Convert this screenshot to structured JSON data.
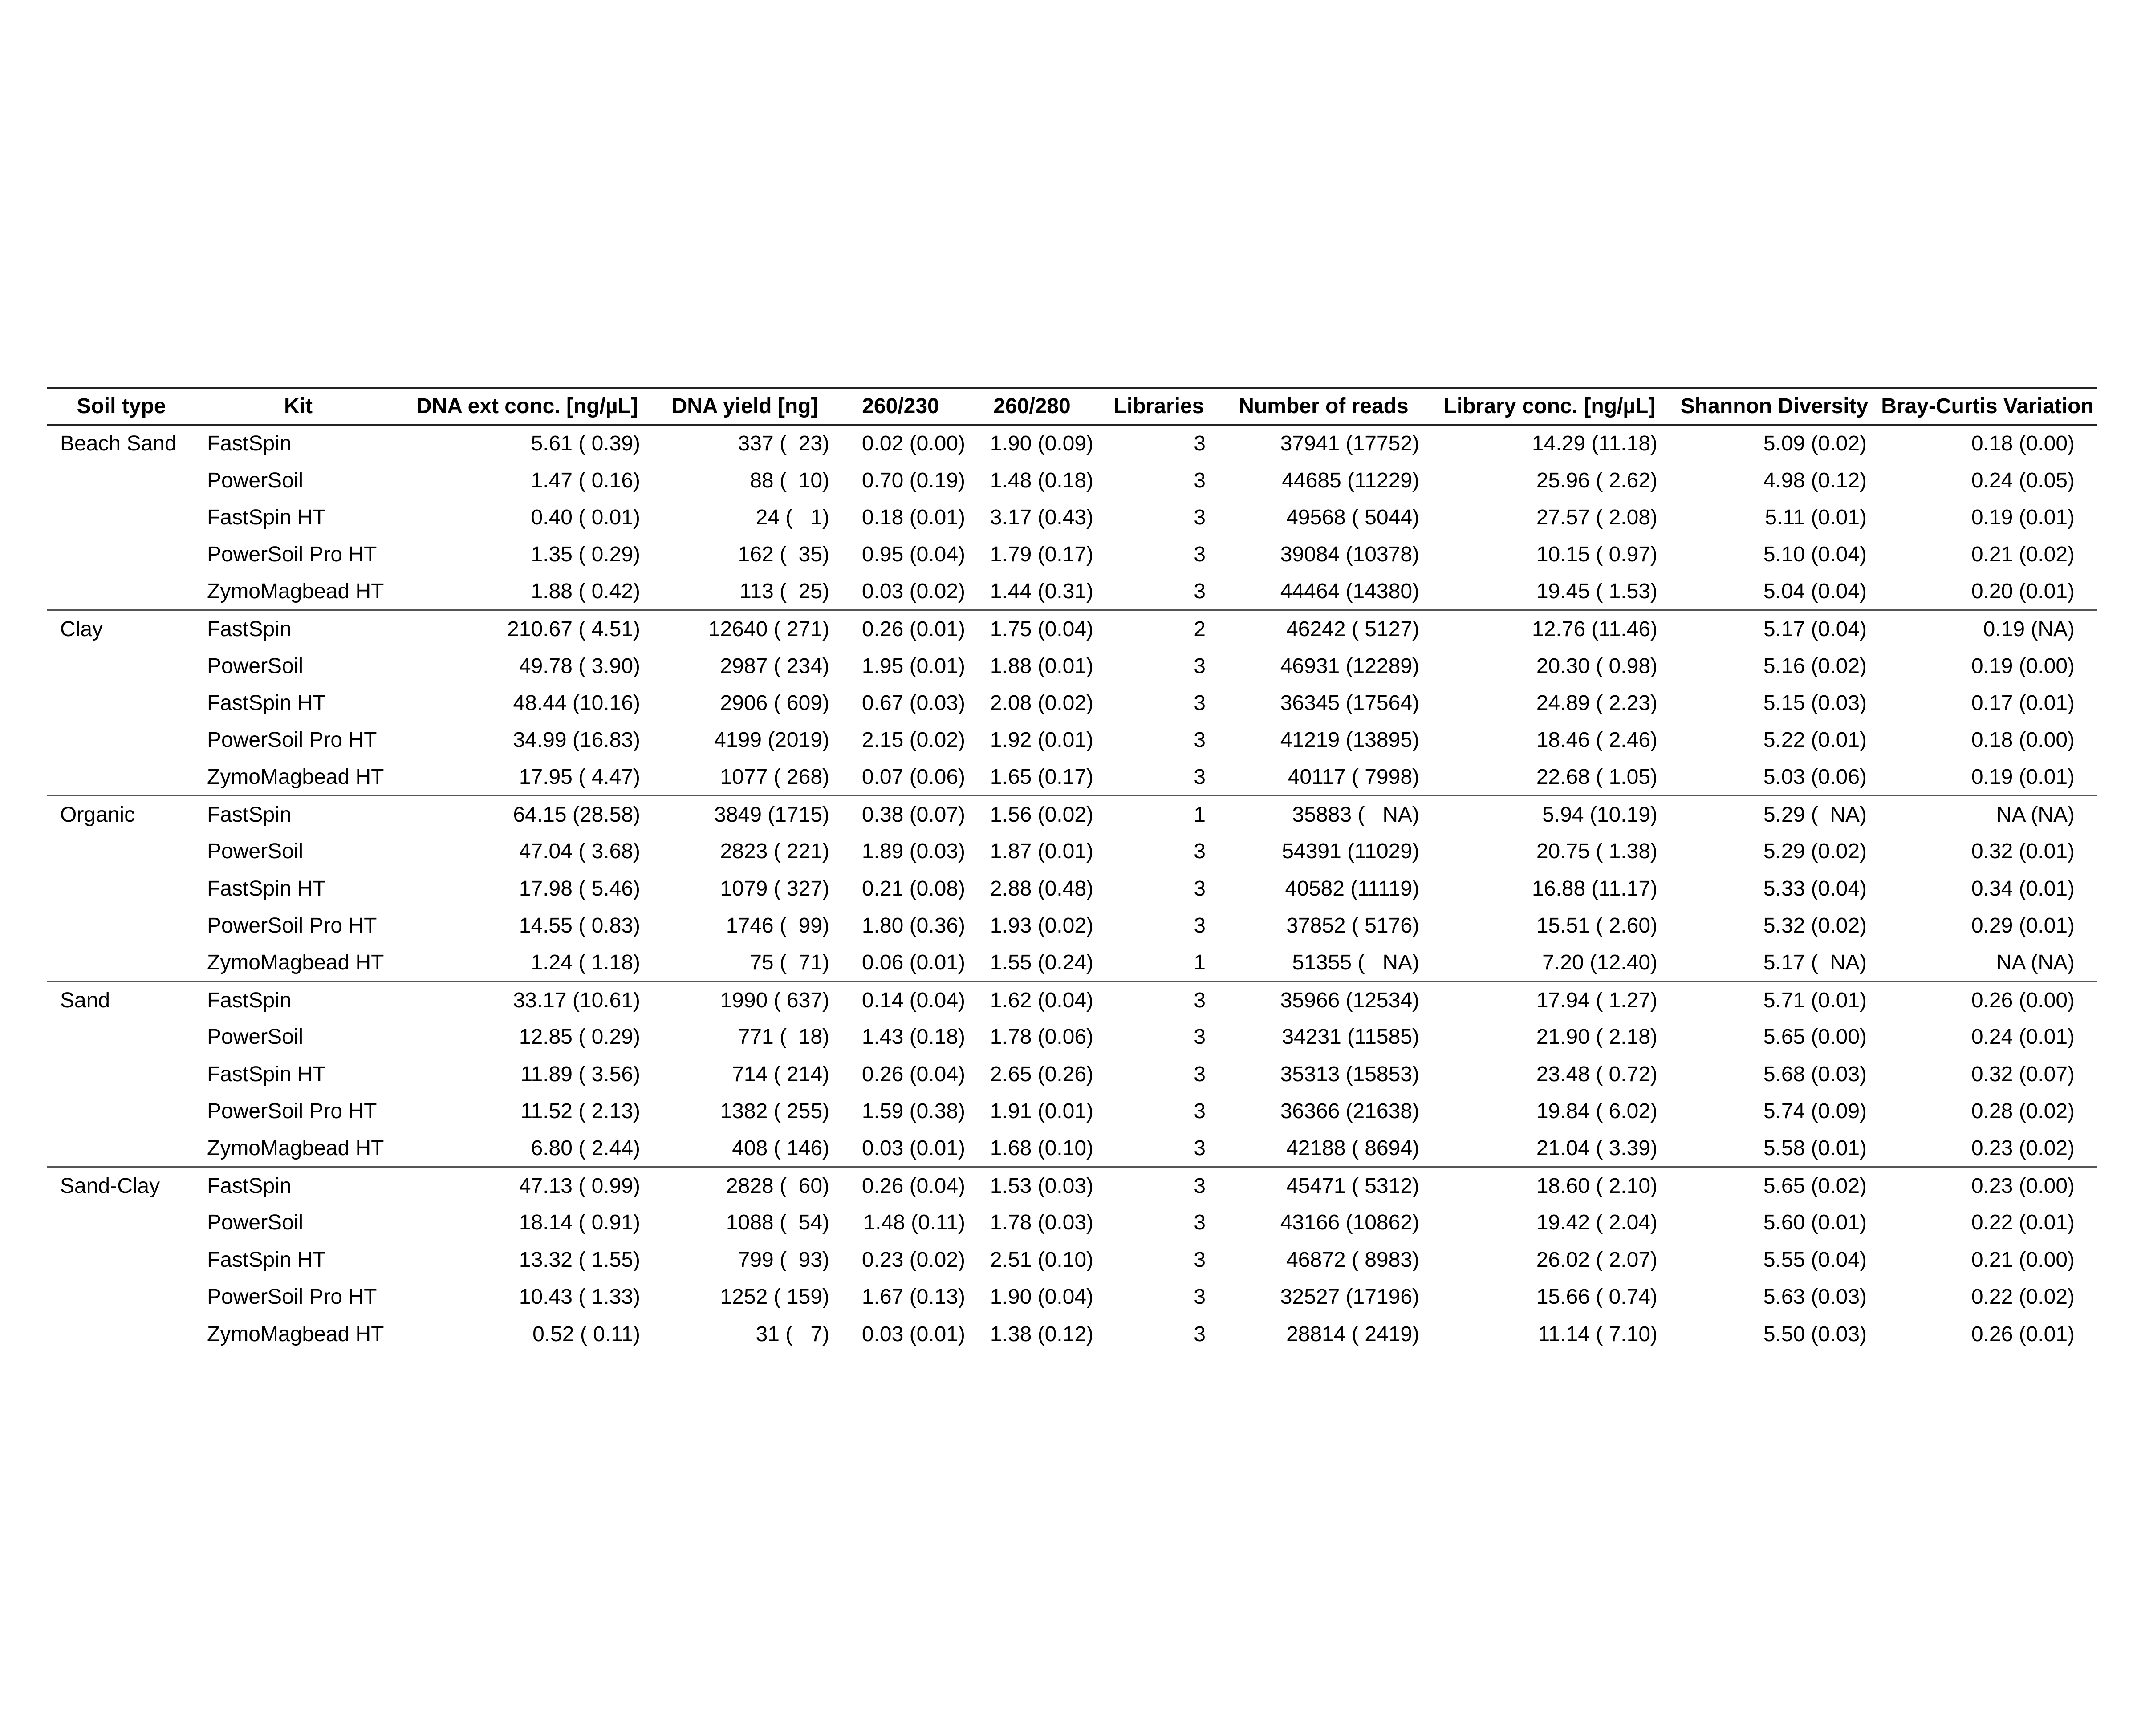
{
  "table": {
    "headers": [
      "Soil type",
      "Kit",
      "DNA ext conc. [ng/µL]",
      "DNA yield [ng]",
      "260/230",
      "260/280",
      "Libraries",
      "Number of reads",
      "Library conc. [ng/µL]",
      "Shannon Diversity",
      "Bray-Curtis Variation"
    ],
    "groups": [
      {
        "soil": "Beach Sand",
        "rows": [
          {
            "kit": "FastSpin",
            "dna_conc": "5.61 ( 0.39)",
            "yield": "337 (  23)",
            "r230": "0.02 (0.00)",
            "r280": "1.90 (0.09)",
            "libraries": "3",
            "reads": "37941 (17752)",
            "lib_conc": "14.29 (11.18)",
            "shannon": "5.09 (0.02)",
            "bray": "0.18 (0.00)"
          },
          {
            "kit": "PowerSoil",
            "dna_conc": "1.47 ( 0.16)",
            "yield": "88 (  10)",
            "r230": "0.70 (0.19)",
            "r280": "1.48 (0.18)",
            "libraries": "3",
            "reads": "44685 (11229)",
            "lib_conc": "25.96 ( 2.62)",
            "shannon": "4.98 (0.12)",
            "bray": "0.24 (0.05)"
          },
          {
            "kit": "FastSpin HT",
            "dna_conc": "0.40 ( 0.01)",
            "yield": "24 (   1)",
            "r230": "0.18 (0.01)",
            "r280": "3.17 (0.43)",
            "libraries": "3",
            "reads": "49568 ( 5044)",
            "lib_conc": "27.57 ( 2.08)",
            "shannon": "5.11 (0.01)",
            "bray": "0.19 (0.01)"
          },
          {
            "kit": "PowerSoil Pro HT",
            "dna_conc": "1.35 ( 0.29)",
            "yield": "162 (  35)",
            "r230": "0.95 (0.04)",
            "r280": "1.79 (0.17)",
            "libraries": "3",
            "reads": "39084 (10378)",
            "lib_conc": "10.15 ( 0.97)",
            "shannon": "5.10 (0.04)",
            "bray": "0.21 (0.02)"
          },
          {
            "kit": "ZymoMagbead HT",
            "dna_conc": "1.88 ( 0.42)",
            "yield": "113 (  25)",
            "r230": "0.03 (0.02)",
            "r280": "1.44 (0.31)",
            "libraries": "3",
            "reads": "44464 (14380)",
            "lib_conc": "19.45 ( 1.53)",
            "shannon": "5.04 (0.04)",
            "bray": "0.20 (0.01)"
          }
        ]
      },
      {
        "soil": "Clay",
        "rows": [
          {
            "kit": "FastSpin",
            "dna_conc": "210.67 ( 4.51)",
            "yield": "12640 ( 271)",
            "r230": "0.26 (0.01)",
            "r280": "1.75 (0.04)",
            "libraries": "2",
            "reads": "46242 ( 5127)",
            "lib_conc": "12.76 (11.46)",
            "shannon": "5.17 (0.04)",
            "bray": "0.19 (NA)"
          },
          {
            "kit": "PowerSoil",
            "dna_conc": "49.78 ( 3.90)",
            "yield": "2987 ( 234)",
            "r230": "1.95 (0.01)",
            "r280": "1.88 (0.01)",
            "libraries": "3",
            "reads": "46931 (12289)",
            "lib_conc": "20.30 ( 0.98)",
            "shannon": "5.16 (0.02)",
            "bray": "0.19 (0.00)"
          },
          {
            "kit": "FastSpin HT",
            "dna_conc": "48.44 (10.16)",
            "yield": "2906 ( 609)",
            "r230": "0.67 (0.03)",
            "r280": "2.08 (0.02)",
            "libraries": "3",
            "reads": "36345 (17564)",
            "lib_conc": "24.89 ( 2.23)",
            "shannon": "5.15 (0.03)",
            "bray": "0.17 (0.01)"
          },
          {
            "kit": "PowerSoil Pro HT",
            "dna_conc": "34.99 (16.83)",
            "yield": "4199 (2019)",
            "r230": "2.15 (0.02)",
            "r280": "1.92 (0.01)",
            "libraries": "3",
            "reads": "41219 (13895)",
            "lib_conc": "18.46 ( 2.46)",
            "shannon": "5.22 (0.01)",
            "bray": "0.18 (0.00)"
          },
          {
            "kit": "ZymoMagbead HT",
            "dna_conc": "17.95 ( 4.47)",
            "yield": "1077 ( 268)",
            "r230": "0.07 (0.06)",
            "r280": "1.65 (0.17)",
            "libraries": "3",
            "reads": "40117 ( 7998)",
            "lib_conc": "22.68 ( 1.05)",
            "shannon": "5.03 (0.06)",
            "bray": "0.19 (0.01)"
          }
        ]
      },
      {
        "soil": "Organic",
        "rows": [
          {
            "kit": "FastSpin",
            "dna_conc": "64.15 (28.58)",
            "yield": "3849 (1715)",
            "r230": "0.38 (0.07)",
            "r280": "1.56 (0.02)",
            "libraries": "1",
            "reads": "35883 (   NA)",
            "lib_conc": "5.94 (10.19)",
            "shannon": "5.29 (  NA)",
            "bray": "NA (NA)"
          },
          {
            "kit": "PowerSoil",
            "dna_conc": "47.04 ( 3.68)",
            "yield": "2823 ( 221)",
            "r230": "1.89 (0.03)",
            "r280": "1.87 (0.01)",
            "libraries": "3",
            "reads": "54391 (11029)",
            "lib_conc": "20.75 ( 1.38)",
            "shannon": "5.29 (0.02)",
            "bray": "0.32 (0.01)"
          },
          {
            "kit": "FastSpin HT",
            "dna_conc": "17.98 ( 5.46)",
            "yield": "1079 ( 327)",
            "r230": "0.21 (0.08)",
            "r280": "2.88 (0.48)",
            "libraries": "3",
            "reads": "40582 (11119)",
            "lib_conc": "16.88 (11.17)",
            "shannon": "5.33 (0.04)",
            "bray": "0.34 (0.01)"
          },
          {
            "kit": "PowerSoil Pro HT",
            "dna_conc": "14.55 ( 0.83)",
            "yield": "1746 (  99)",
            "r230": "1.80 (0.36)",
            "r280": "1.93 (0.02)",
            "libraries": "3",
            "reads": "37852 ( 5176)",
            "lib_conc": "15.51 ( 2.60)",
            "shannon": "5.32 (0.02)",
            "bray": "0.29 (0.01)"
          },
          {
            "kit": "ZymoMagbead HT",
            "dna_conc": "1.24 ( 1.18)",
            "yield": "75 (  71)",
            "r230": "0.06 (0.01)",
            "r280": "1.55 (0.24)",
            "libraries": "1",
            "reads": "51355 (   NA)",
            "lib_conc": "7.20 (12.40)",
            "shannon": "5.17 (  NA)",
            "bray": "NA (NA)"
          }
        ]
      },
      {
        "soil": "Sand",
        "rows": [
          {
            "kit": "FastSpin",
            "dna_conc": "33.17 (10.61)",
            "yield": "1990 ( 637)",
            "r230": "0.14 (0.04)",
            "r280": "1.62 (0.04)",
            "libraries": "3",
            "reads": "35966 (12534)",
            "lib_conc": "17.94 ( 1.27)",
            "shannon": "5.71 (0.01)",
            "bray": "0.26 (0.00)"
          },
          {
            "kit": "PowerSoil",
            "dna_conc": "12.85 ( 0.29)",
            "yield": "771 (  18)",
            "r230": "1.43 (0.18)",
            "r280": "1.78 (0.06)",
            "libraries": "3",
            "reads": "34231 (11585)",
            "lib_conc": "21.90 ( 2.18)",
            "shannon": "5.65 (0.00)",
            "bray": "0.24 (0.01)"
          },
          {
            "kit": "FastSpin HT",
            "dna_conc": "11.89 ( 3.56)",
            "yield": "714 ( 214)",
            "r230": "0.26 (0.04)",
            "r280": "2.65 (0.26)",
            "libraries": "3",
            "reads": "35313 (15853)",
            "lib_conc": "23.48 ( 0.72)",
            "shannon": "5.68 (0.03)",
            "bray": "0.32 (0.07)"
          },
          {
            "kit": "PowerSoil Pro HT",
            "dna_conc": "11.52 ( 2.13)",
            "yield": "1382 ( 255)",
            "r230": "1.59 (0.38)",
            "r280": "1.91 (0.01)",
            "libraries": "3",
            "reads": "36366 (21638)",
            "lib_conc": "19.84 ( 6.02)",
            "shannon": "5.74 (0.09)",
            "bray": "0.28 (0.02)"
          },
          {
            "kit": "ZymoMagbead HT",
            "dna_conc": "6.80 ( 2.44)",
            "yield": "408 ( 146)",
            "r230": "0.03 (0.01)",
            "r280": "1.68 (0.10)",
            "libraries": "3",
            "reads": "42188 ( 8694)",
            "lib_conc": "21.04 ( 3.39)",
            "shannon": "5.58 (0.01)",
            "bray": "0.23 (0.02)"
          }
        ]
      },
      {
        "soil": "Sand-Clay",
        "rows": [
          {
            "kit": "FastSpin",
            "dna_conc": "47.13 ( 0.99)",
            "yield": "2828 (  60)",
            "r230": "0.26 (0.04)",
            "r280": "1.53 (0.03)",
            "libraries": "3",
            "reads": "45471 ( 5312)",
            "lib_conc": "18.60 ( 2.10)",
            "shannon": "5.65 (0.02)",
            "bray": "0.23 (0.00)"
          },
          {
            "kit": "PowerSoil",
            "dna_conc": "18.14 ( 0.91)",
            "yield": "1088 (  54)",
            "r230": "1.48 (0.11)",
            "r280": "1.78 (0.03)",
            "libraries": "3",
            "reads": "43166 (10862)",
            "lib_conc": "19.42 ( 2.04)",
            "shannon": "5.60 (0.01)",
            "bray": "0.22 (0.01)"
          },
          {
            "kit": "FastSpin HT",
            "dna_conc": "13.32 ( 1.55)",
            "yield": "799 (  93)",
            "r230": "0.23 (0.02)",
            "r280": "2.51 (0.10)",
            "libraries": "3",
            "reads": "46872 ( 8983)",
            "lib_conc": "26.02 ( 2.07)",
            "shannon": "5.55 (0.04)",
            "bray": "0.21 (0.00)"
          },
          {
            "kit": "PowerSoil Pro HT",
            "dna_conc": "10.43 ( 1.33)",
            "yield": "1252 ( 159)",
            "r230": "1.67 (0.13)",
            "r280": "1.90 (0.04)",
            "libraries": "3",
            "reads": "32527 (17196)",
            "lib_conc": "15.66 ( 0.74)",
            "shannon": "5.63 (0.03)",
            "bray": "0.22 (0.02)"
          },
          {
            "kit": "ZymoMagbead HT",
            "dna_conc": "0.52 ( 0.11)",
            "yield": "31 (   7)",
            "r230": "0.03 (0.01)",
            "r280": "1.38 (0.12)",
            "libraries": "3",
            "reads": "28814 ( 2419)",
            "lib_conc": "11.14 ( 7.10)",
            "shannon": "5.50 (0.03)",
            "bray": "0.26 (0.01)"
          }
        ]
      }
    ]
  }
}
